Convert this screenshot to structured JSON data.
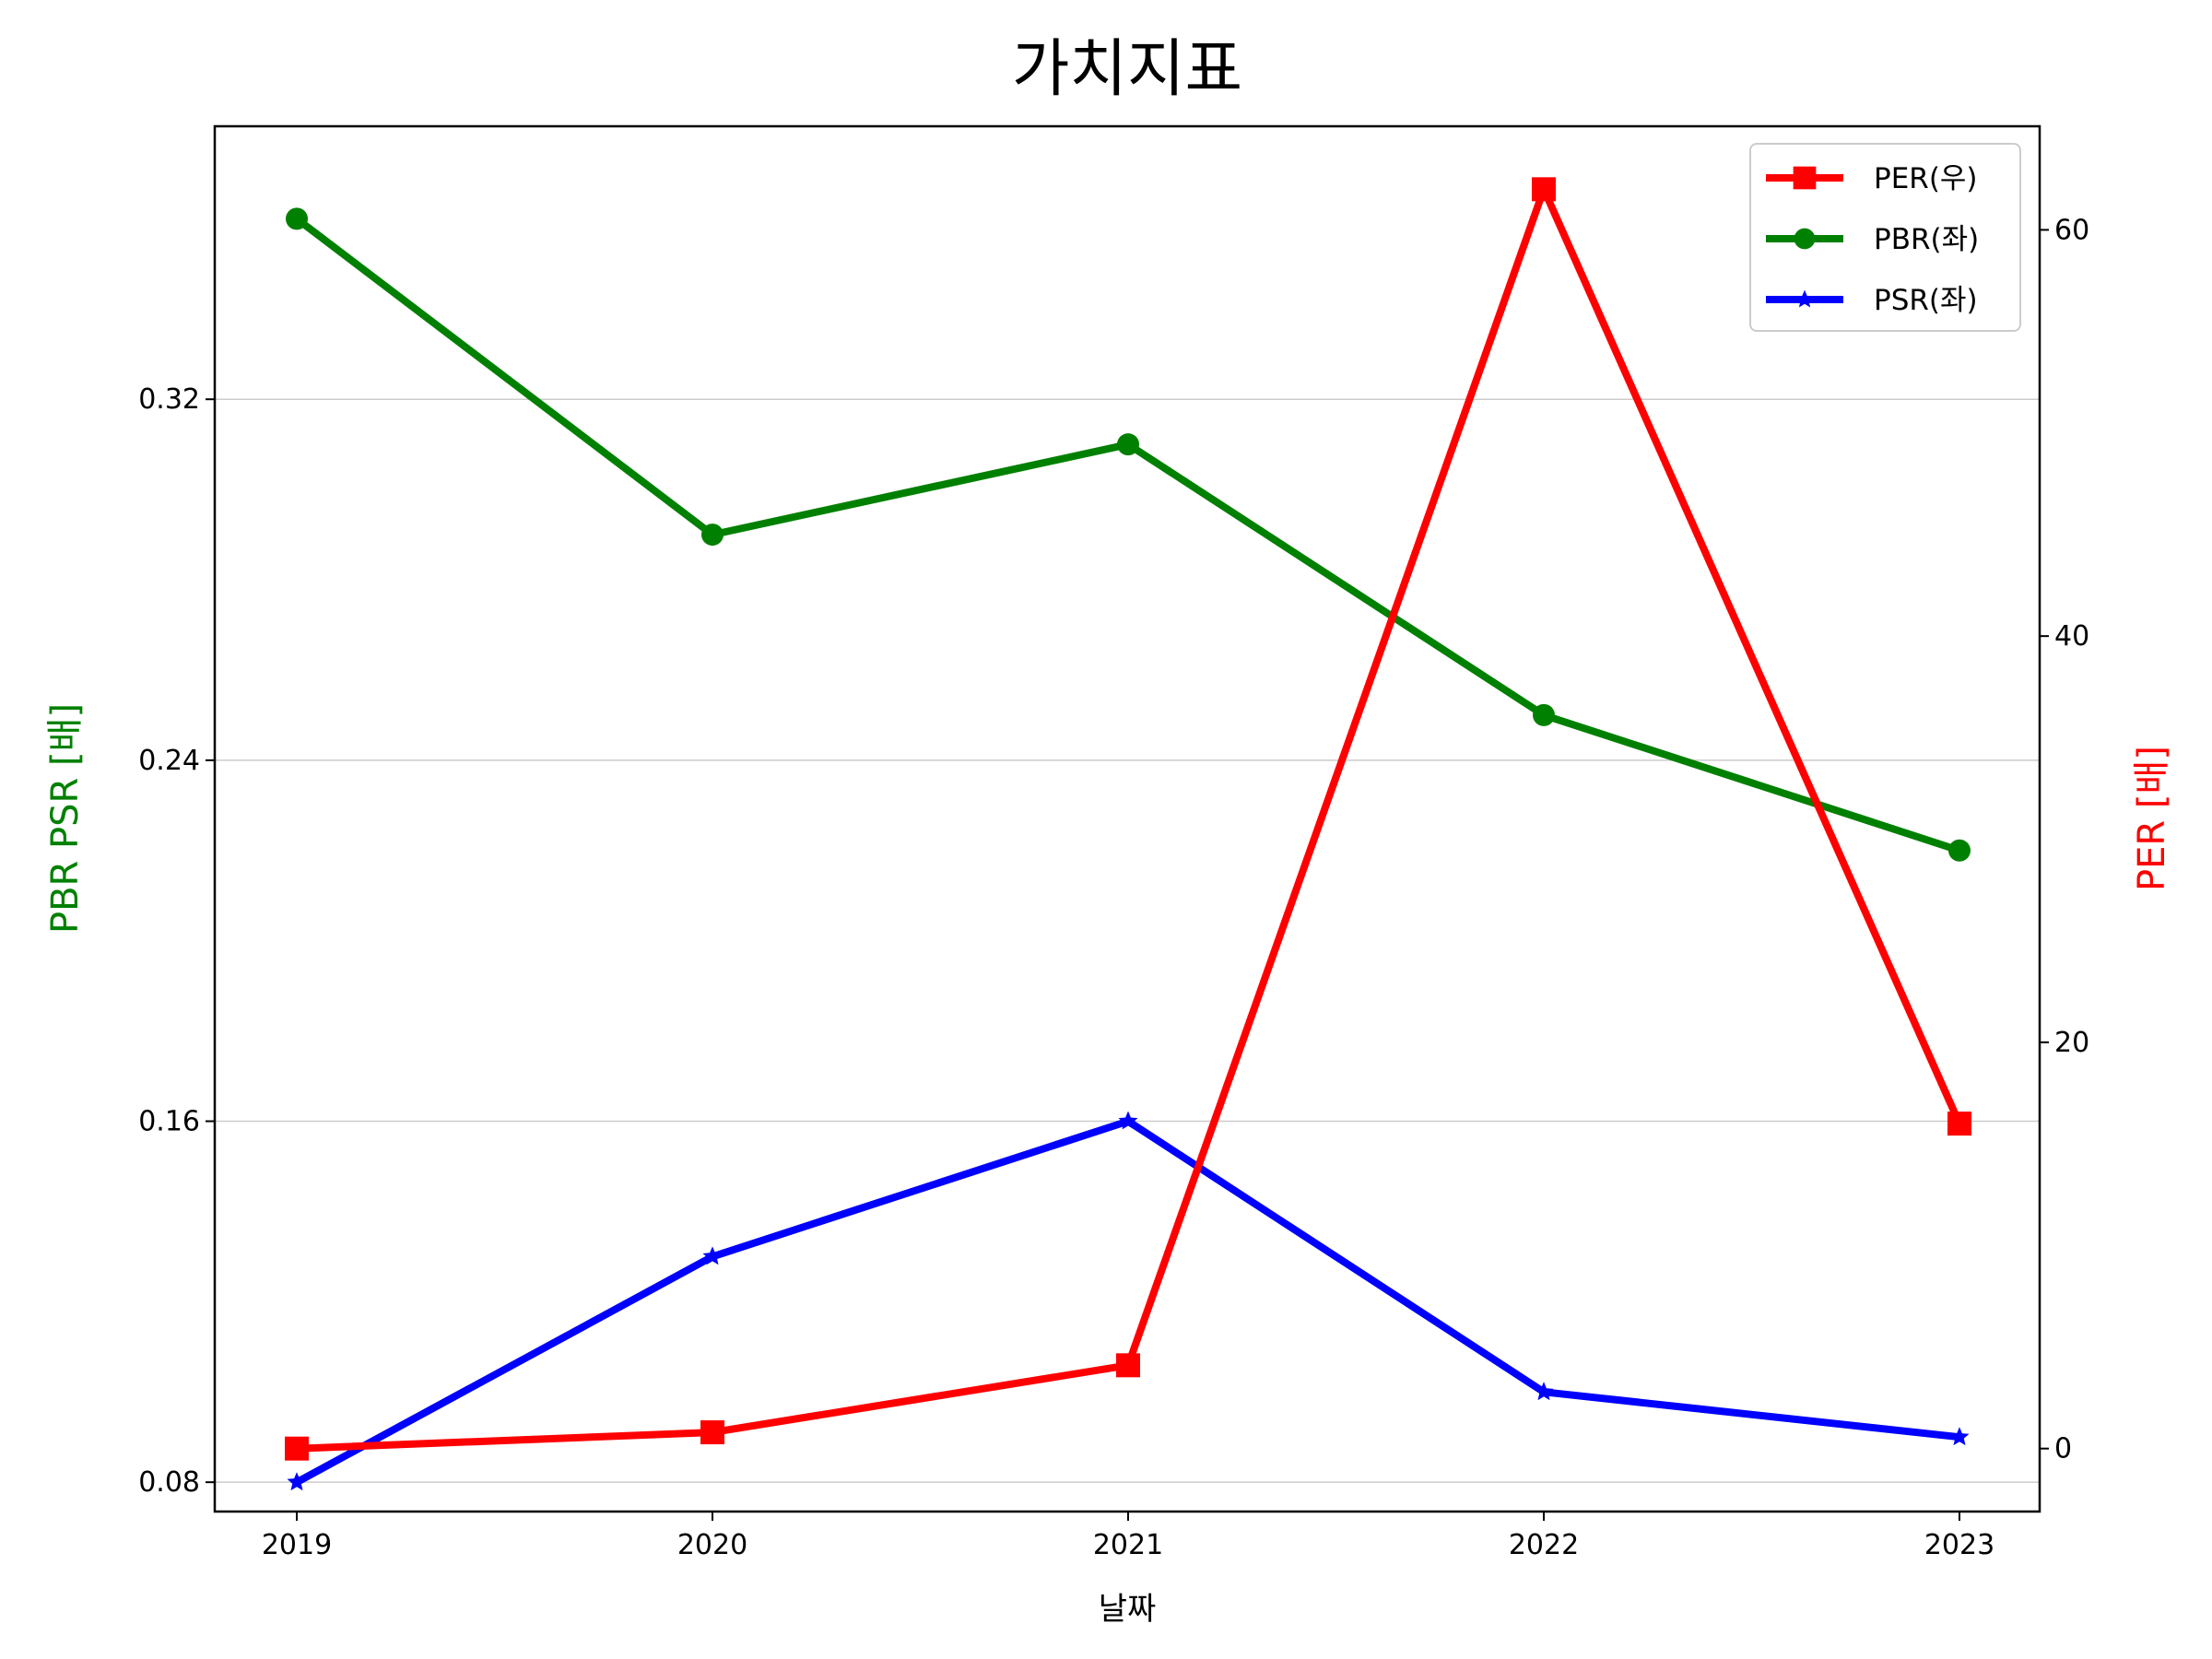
{
  "chart_data": {
    "type": "line",
    "title": "가치지표",
    "xlabel": "날짜",
    "ylabel_left": "PBR PSR [배]",
    "ylabel_right": "PER [배]",
    "categories": [
      "2019",
      "2020",
      "2021",
      "2022",
      "2023"
    ],
    "left_axis": {
      "ylim": [
        0.0735,
        0.3805
      ],
      "ticks": [
        0.08,
        0.16,
        0.24,
        0.32
      ],
      "tick_labels": [
        "0.08",
        "0.16",
        "0.24",
        "0.32"
      ],
      "color": "#008000"
    },
    "right_axis": {
      "ylim": [
        -3.1,
        65.1
      ],
      "ticks": [
        0,
        20,
        40,
        60
      ],
      "tick_labels": [
        "0",
        "20",
        "40",
        "60"
      ],
      "color": "#ff0000"
    },
    "grid": "horizontal (left axis)",
    "legend_position": "top-right",
    "series": [
      {
        "name": "PER(우)",
        "axis": "right",
        "color": "#ff0000",
        "marker": "square",
        "values": [
          0.0,
          0.8,
          4.1,
          62.0,
          16.0
        ]
      },
      {
        "name": "PBR(좌)",
        "axis": "left",
        "color": "#008000",
        "marker": "circle",
        "values": [
          0.36,
          0.29,
          0.31,
          0.25,
          0.22
        ]
      },
      {
        "name": "PSR(좌)",
        "axis": "left",
        "color": "#0000ff",
        "marker": "star",
        "values": [
          0.08,
          0.13,
          0.16,
          0.1,
          0.09
        ]
      }
    ]
  }
}
